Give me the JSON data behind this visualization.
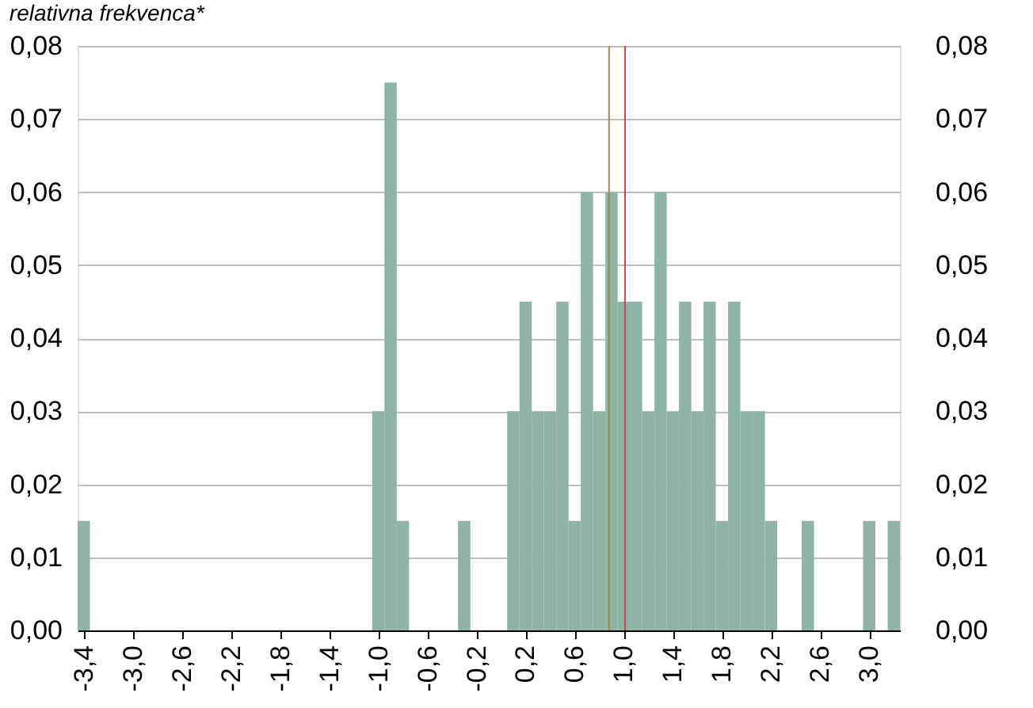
{
  "chart_data": {
    "type": "histogram",
    "ylabel": "relativna frekvenca*",
    "bins": [
      -3.45,
      -3.35,
      -3.25,
      -3.15,
      -3.05,
      -2.95,
      -2.85,
      -2.75,
      -2.65,
      -2.55,
      -2.45,
      -2.35,
      -2.25,
      -2.15,
      -2.05,
      -1.95,
      -1.85,
      -1.75,
      -1.65,
      -1.55,
      -1.45,
      -1.35,
      -1.25,
      -1.15,
      -1.05,
      -0.95,
      -0.85,
      -0.75,
      -0.65,
      -0.55,
      -0.45,
      -0.35,
      -0.25,
      -0.15,
      -0.05,
      0.05,
      0.15,
      0.25,
      0.35,
      0.45,
      0.55,
      0.65,
      0.75,
      0.85,
      0.95,
      1.05,
      1.15,
      1.25,
      1.35,
      1.45,
      1.55,
      1.65,
      1.75,
      1.85,
      1.95,
      2.05,
      2.15,
      2.25,
      2.35,
      2.45,
      2.55,
      2.65,
      2.75,
      2.85,
      2.95,
      3.05,
      3.15,
      3.25
    ],
    "values": [
      0.015,
      0,
      0,
      0,
      0,
      0,
      0,
      0,
      0,
      0,
      0,
      0,
      0,
      0,
      0,
      0,
      0,
      0,
      0,
      0,
      0,
      0,
      0,
      0,
      0.03,
      0.075,
      0.015,
      0,
      0,
      0,
      0,
      0.015,
      0,
      0,
      0,
      0.03,
      0.045,
      0.03,
      0.03,
      0.045,
      0.015,
      0.06,
      0.03,
      0.06,
      0.045,
      0.045,
      0.03,
      0.06,
      0.03,
      0.045,
      0.03,
      0.045,
      0.015,
      0.045,
      0.03,
      0.03,
      0.015,
      0,
      0,
      0.015,
      0,
      0,
      0,
      0,
      0.015,
      0,
      0.015
    ],
    "color": "#8fb3a5",
    "xlim": [
      -3.45,
      3.25
    ],
    "xticks": [
      {
        "value": -3.4,
        "label": "-3,4"
      },
      {
        "value": -3.0,
        "label": "-3,0"
      },
      {
        "value": -2.6,
        "label": "-2,6"
      },
      {
        "value": -2.2,
        "label": "-2,2"
      },
      {
        "value": -1.8,
        "label": "-1,8"
      },
      {
        "value": -1.4,
        "label": "-1,4"
      },
      {
        "value": -1.0,
        "label": "-1,0"
      },
      {
        "value": -0.6,
        "label": "-0,6"
      },
      {
        "value": -0.2,
        "label": "-0,2"
      },
      {
        "value": 0.2,
        "label": "0,2"
      },
      {
        "value": 0.6,
        "label": "0,6"
      },
      {
        "value": 1.0,
        "label": "1,0"
      },
      {
        "value": 1.4,
        "label": "1,4"
      },
      {
        "value": 1.8,
        "label": "1,8"
      },
      {
        "value": 2.2,
        "label": "2,2"
      },
      {
        "value": 2.6,
        "label": "2,6"
      },
      {
        "value": 3.0,
        "label": "3,0"
      }
    ],
    "ylim": [
      0,
      0.08
    ],
    "yticks": [
      {
        "value": 0,
        "label": "0,00"
      },
      {
        "value": 0.01,
        "label": "0,01"
      },
      {
        "value": 0.02,
        "label": "0,02"
      },
      {
        "value": 0.03,
        "label": "0,03"
      },
      {
        "value": 0.04,
        "label": "0,04"
      },
      {
        "value": 0.05,
        "label": "0,05"
      },
      {
        "value": 0.06,
        "label": "0,06"
      },
      {
        "value": 0.07,
        "label": "0,07"
      },
      {
        "value": 0.08,
        "label": "0,08"
      }
    ],
    "y2lim": [
      0,
      0.08
    ],
    "y2ticks": [
      {
        "value": 0,
        "label": "0,00"
      },
      {
        "value": 0.01,
        "label": "0,01"
      },
      {
        "value": 0.02,
        "label": "0,02"
      },
      {
        "value": 0.03,
        "label": "0,03"
      },
      {
        "value": 0.04,
        "label": "0,04"
      },
      {
        "value": 0.05,
        "label": "0,05"
      },
      {
        "value": 0.06,
        "label": "0,06"
      },
      {
        "value": 0.07,
        "label": "0,07"
      },
      {
        "value": 0.08,
        "label": "0,08"
      }
    ],
    "ref_lines": [
      {
        "axis": "x",
        "value": 0.88,
        "color": "#a08a52"
      },
      {
        "axis": "x",
        "value": 1.01,
        "color": "#c0504d"
      }
    ],
    "grid": "y"
  }
}
